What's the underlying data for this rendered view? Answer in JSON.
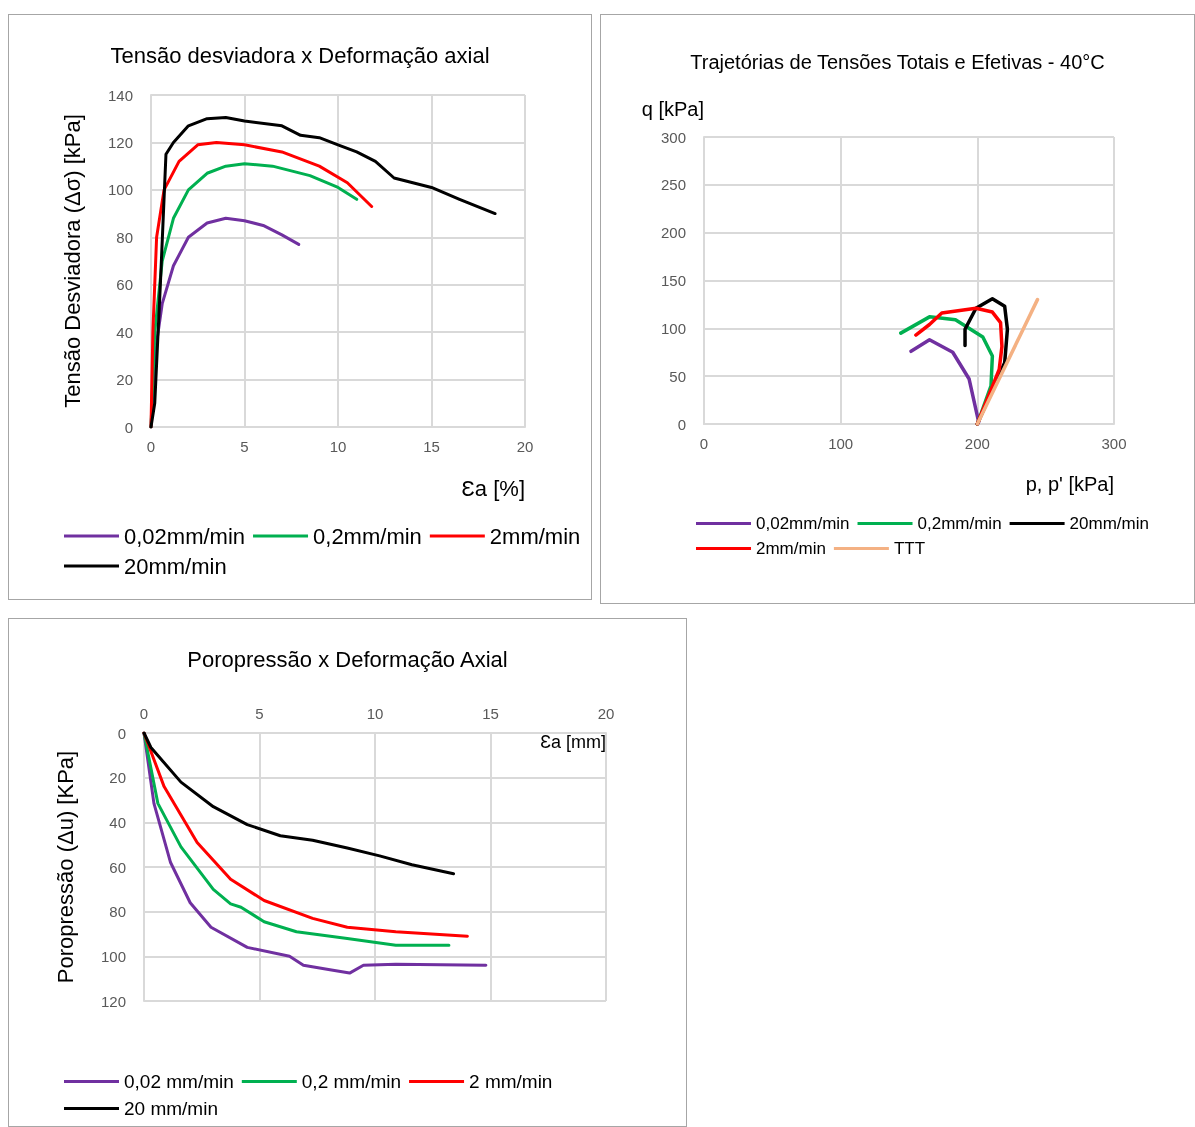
{
  "chart_data": [
    {
      "type": "line",
      "title": "Tensão desviadora x Deformação axial",
      "xlabel": "Ɛa [%]",
      "ylabel": "Tensão Desviadora (Δσ) [kPa]",
      "xlim": [
        0,
        20
      ],
      "xticks": [
        0,
        5,
        10,
        15,
        20
      ],
      "ylim": [
        0,
        140
      ],
      "yticks": [
        0,
        20,
        40,
        60,
        80,
        100,
        120,
        140
      ],
      "grid": true,
      "legend": "bottom",
      "marker": "none",
      "line_style": "solid",
      "series": [
        {
          "name": "0,02mm/min",
          "color": "#7030a0",
          "x": [
            0,
            0.2,
            0.6,
            1.2,
            2,
            3,
            4,
            5,
            6,
            7,
            7.9
          ],
          "values": [
            0,
            30,
            52,
            68,
            80,
            86,
            88,
            87,
            85,
            81,
            77
          ]
        },
        {
          "name": "0,2mm/min",
          "color": "#00b050",
          "x": [
            0,
            0.2,
            0.6,
            1.2,
            2,
            3,
            4,
            5,
            6.5,
            8.5,
            10,
            11
          ],
          "values": [
            0,
            40,
            70,
            88,
            100,
            107,
            110,
            111,
            110,
            106,
            101,
            96
          ]
        },
        {
          "name": "2mm/min",
          "color": "#ff0000",
          "x": [
            0,
            0.1,
            0.3,
            0.7,
            1.5,
            2.5,
            3.5,
            5,
            7,
            9,
            10.5,
            11.8
          ],
          "values": [
            0,
            40,
            80,
            100,
            112,
            119,
            120,
            119,
            116,
            110,
            103,
            93
          ]
        },
        {
          "name": "20mm/min",
          "color": "#000000",
          "x": [
            0,
            0.2,
            0.5,
            0.8,
            1.2,
            2,
            3,
            4,
            5,
            7,
            8,
            9,
            10,
            11,
            12,
            13,
            14,
            15,
            16.5,
            18.4
          ],
          "values": [
            0,
            10,
            60,
            115,
            120,
            127,
            130,
            130.5,
            129,
            127,
            123,
            122,
            119,
            116,
            112,
            105,
            103,
            101,
            96,
            90
          ]
        }
      ]
    },
    {
      "type": "line",
      "title": "Trajetórias de Tensões Totais e Efetivas - 40°C",
      "xlabel": "p, p' [kPa]",
      "ylabel": "q [kPa]",
      "xlim": [
        0,
        300
      ],
      "xticks": [
        0,
        100,
        200,
        300
      ],
      "ylim": [
        0,
        300
      ],
      "yticks": [
        0,
        50,
        100,
        150,
        200,
        250,
        300
      ],
      "grid": true,
      "legend": "bottom",
      "marker": "none",
      "line_style": "solid",
      "series": [
        {
          "name": "0,02mm/min",
          "color": "#7030a0",
          "x": [
            151.5,
            165,
            182,
            194,
            201,
            200
          ],
          "values": [
            76,
            88,
            75,
            47,
            2,
            0
          ]
        },
        {
          "name": "0,2mm/min",
          "color": "#00b050",
          "x": [
            144,
            165,
            184,
            204,
            211,
            210,
            200
          ],
          "values": [
            95,
            112,
            109,
            91,
            71,
            40,
            0
          ]
        },
        {
          "name": "20mm/min",
          "color": "#000000",
          "x": [
            191,
            191,
            199,
            211,
            220,
            222,
            220,
            217,
            200
          ],
          "values": [
            82,
            99,
            121,
            131,
            123,
            99,
            64,
            55,
            0
          ]
        },
        {
          "name": "2mm/min",
          "color": "#ff0000",
          "x": [
            155,
            165,
            174,
            199,
            211,
            217,
            218,
            216,
            200
          ],
          "values": [
            93,
            104,
            116,
            121,
            117,
            106,
            81,
            57,
            0
          ]
        },
        {
          "name": "TTT",
          "color": "#f4b183",
          "x": [
            200,
            244
          ],
          "values": [
            0,
            130
          ]
        }
      ]
    },
    {
      "type": "line",
      "title": "Poropressão x Deformação Axial",
      "xlabel": "Ɛa [mm]",
      "ylabel": "Poropressão (Δu) [KPa]",
      "xlim": [
        0,
        20
      ],
      "xticks": [
        0,
        5,
        10,
        15,
        20
      ],
      "ylim": [
        120,
        0
      ],
      "yticks": [
        0,
        20,
        40,
        60,
        80,
        100,
        120
      ],
      "grid": true,
      "legend": "bottom",
      "marker": "none",
      "line_style": "solid",
      "series": [
        {
          "name": "0,02 mm/min",
          "color": "#7030a0",
          "x": [
            0,
            0.43,
            1.15,
            2,
            2.9,
            4.47,
            6.3,
            6.9,
            8.05,
            8.9,
            9.5,
            10.9,
            14.8
          ],
          "values": [
            0,
            31.5,
            58,
            76,
            87,
            96,
            100,
            104,
            106,
            107.5,
            104,
            103.5,
            104
          ]
        },
        {
          "name": "0,2 mm/min",
          "color": "#00b050",
          "x": [
            0,
            0.6,
            1.6,
            3,
            3.75,
            4.2,
            5.2,
            6.6,
            8.8,
            10.9,
            13.2
          ],
          "values": [
            0,
            31.5,
            51,
            70,
            76.5,
            78,
            84.5,
            89,
            92,
            95,
            95
          ]
        },
        {
          "name": "2 mm/min",
          "color": "#ff0000",
          "x": [
            0,
            0.87,
            2.3,
            3.75,
            5.2,
            7.3,
            8.8,
            10.9,
            14
          ],
          "values": [
            0,
            24,
            49,
            65.5,
            75,
            83,
            87,
            89,
            91
          ]
        },
        {
          "name": "20 mm/min",
          "color": "#000000",
          "x": [
            0,
            0.3,
            1.6,
            3,
            4.47,
            5.9,
            7.3,
            8.8,
            10.2,
            11.6,
            13.4
          ],
          "values": [
            0,
            6.5,
            22,
            33,
            41,
            46,
            48,
            51.5,
            55,
            59,
            63
          ]
        }
      ]
    }
  ]
}
